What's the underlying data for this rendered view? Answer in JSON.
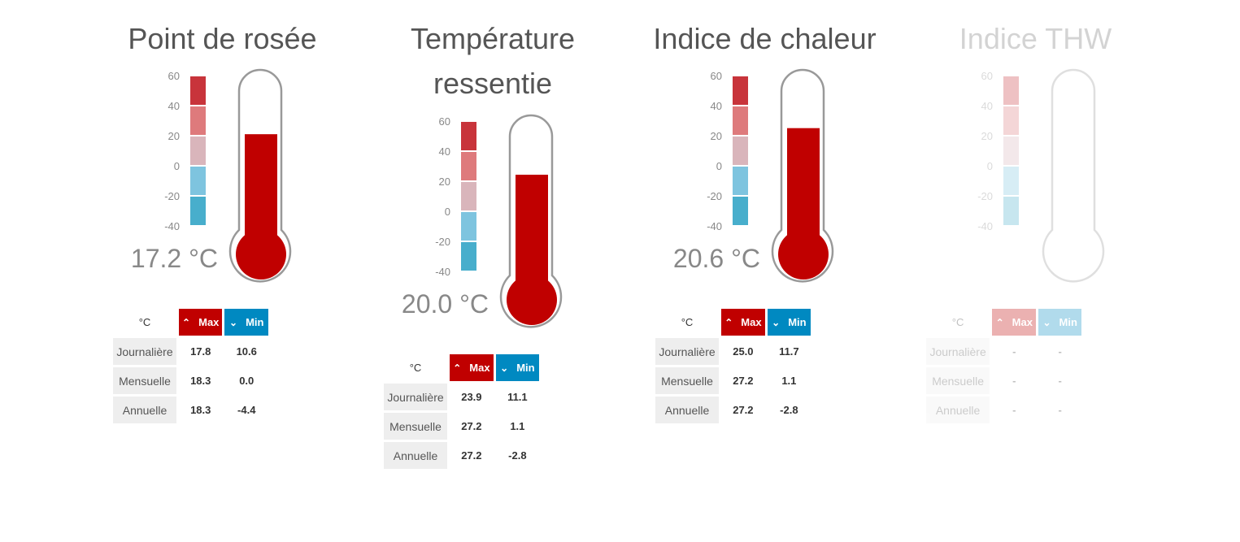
{
  "unit": "°C",
  "max_label": "Max",
  "min_label": "Min",
  "row_labels": [
    "Journalière",
    "Mensuelle",
    "Annuelle"
  ],
  "scale_ticks": [
    "60",
    "40",
    "20",
    "0",
    "-20",
    "-40"
  ],
  "colors": {
    "max": "#c00000",
    "min": "#0089c1",
    "fill": "#c00000",
    "segments": [
      "#c8343b",
      "#de7a7c",
      "#d9b5bb",
      "#7ec4df",
      "#48aecc"
    ]
  },
  "panels": [
    {
      "title": "Point de rosée",
      "value_text": "17.2 °C",
      "value": 17.2,
      "enabled": true,
      "rows": [
        [
          "17.8",
          "10.6"
        ],
        [
          "18.3",
          "0.0"
        ],
        [
          "18.3",
          "-4.4"
        ]
      ]
    },
    {
      "title": "Température ressentie",
      "value_text": "20.0 °C",
      "value": 20.0,
      "enabled": true,
      "rows": [
        [
          "23.9",
          "11.1"
        ],
        [
          "27.2",
          "1.1"
        ],
        [
          "27.2",
          "-2.8"
        ]
      ]
    },
    {
      "title": "Indice de chaleur",
      "value_text": "20.6 °C",
      "value": 20.6,
      "enabled": true,
      "rows": [
        [
          "25.0",
          "11.7"
        ],
        [
          "27.2",
          "1.1"
        ],
        [
          "27.2",
          "-2.8"
        ]
      ]
    },
    {
      "title": "Indice THW",
      "value_text": "",
      "value": null,
      "enabled": false,
      "rows": [
        [
          "-",
          "-"
        ],
        [
          "-",
          "-"
        ],
        [
          "-",
          "-"
        ]
      ]
    }
  ]
}
